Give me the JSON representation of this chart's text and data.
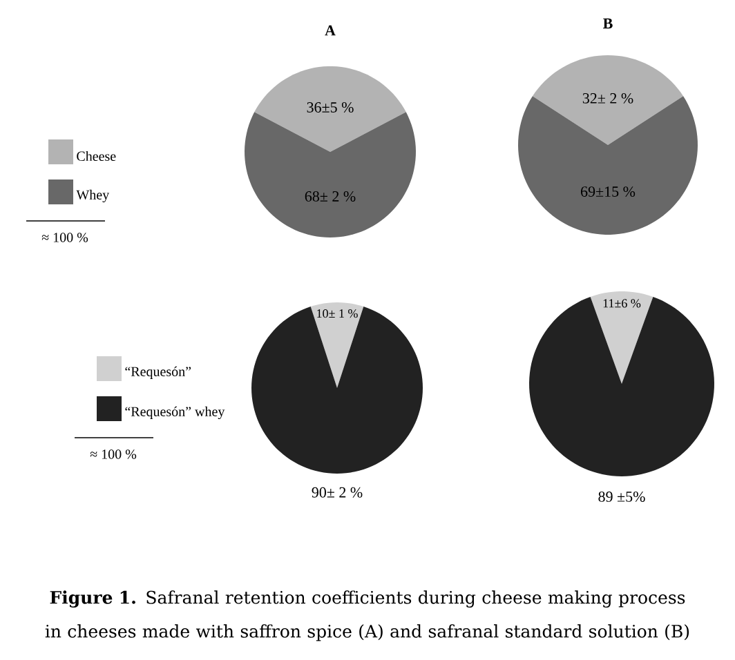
{
  "chart_data": [
    {
      "type": "pie",
      "title": "A",
      "categories": [
        "Cheese",
        "Whey"
      ],
      "values": [
        36,
        68
      ],
      "value_labels": [
        "36±5 %",
        "68± 2 %"
      ],
      "colors": [
        "#b3b3b3",
        "#686868"
      ],
      "legend": "left",
      "annotations": [
        "≈ 100 %"
      ]
    },
    {
      "type": "pie",
      "title": "B",
      "categories": [
        null,
        null
      ],
      "values": [
        32,
        69
      ],
      "value_labels": [
        "32± 2 %",
        "69±15 %"
      ],
      "colors": [
        "#b3b3b3",
        "#686868"
      ]
    },
    {
      "type": "pie",
      "categories": [
        "“Requesón”",
        "“Requesón” whey"
      ],
      "values": [
        10,
        90
      ],
      "value_labels": [
        "10± 1 %",
        "90± 2 %"
      ],
      "colors": [
        "#d0d0d0",
        "#222222"
      ],
      "legend": "left",
      "annotations": [
        "≈ 100 %"
      ]
    },
    {
      "type": "pie",
      "categories": [
        null,
        null
      ],
      "values": [
        11,
        89
      ],
      "value_labels": [
        "11±6 %",
        "89 ±5%"
      ],
      "colors": [
        "#d0d0d0",
        "#222222"
      ],
      "annotations": [
        "**Figure 1.** Safranal retention coefficients during cheese making process in cheeses made with saffron spice (A) and safranal standard solution (B)"
      ]
    }
  ]
}
